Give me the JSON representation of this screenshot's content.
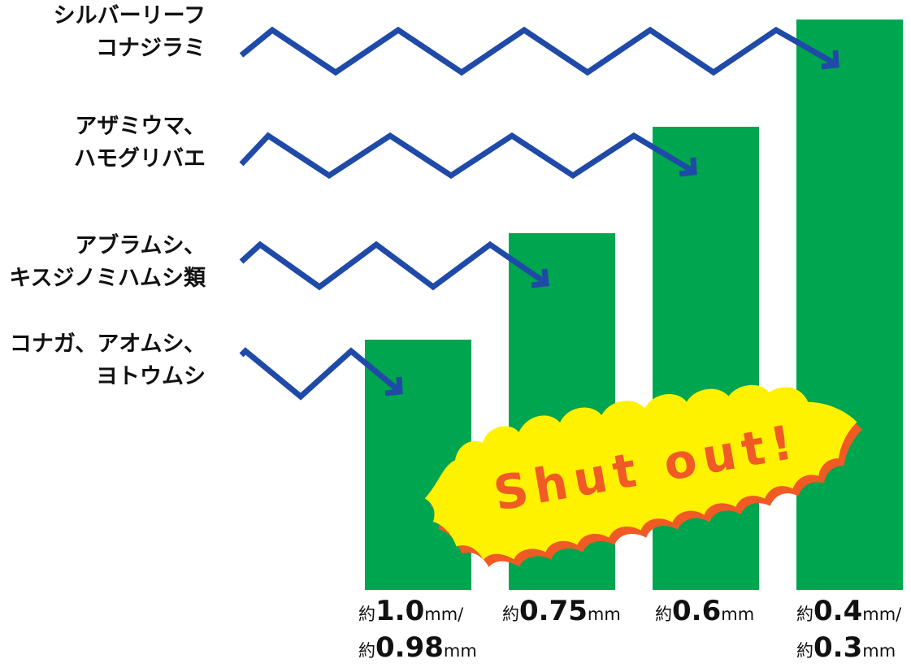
{
  "colors": {
    "bar": "#00a54f",
    "arrow": "#1f4aa8",
    "burst_fill": "#fff200",
    "burst_edge": "#f05a24",
    "burst_text": "#f05a24",
    "label_text": "#111111"
  },
  "pests": [
    {
      "lines": [
        "シルバーリーフ",
        "コナジラミ"
      ]
    },
    {
      "lines": [
        "アザミウマ、",
        "ハモグリバエ"
      ]
    },
    {
      "lines": [
        "アブラムシ、",
        "キスジノミハムシ類"
      ]
    },
    {
      "lines": [
        "コナガ、アオムシ、",
        "ヨトウムシ"
      ]
    }
  ],
  "meshes": [
    {
      "lines": [
        {
          "prefix": "約",
          "value": "1.0",
          "unit": "mm/"
        },
        {
          "prefix": "約",
          "value": "0.98",
          "unit": "mm"
        }
      ]
    },
    {
      "lines": [
        {
          "prefix": "約",
          "value": "0.75",
          "unit": "mm"
        }
      ]
    },
    {
      "lines": [
        {
          "prefix": "約",
          "value": "0.6",
          "unit": "mm"
        }
      ]
    },
    {
      "lines": [
        {
          "prefix": "約",
          "value": "0.4",
          "unit": "mm/"
        },
        {
          "prefix": "約",
          "value": "0.3",
          "unit": "mm"
        }
      ]
    }
  ],
  "burst": {
    "text": "Shut out!"
  }
}
